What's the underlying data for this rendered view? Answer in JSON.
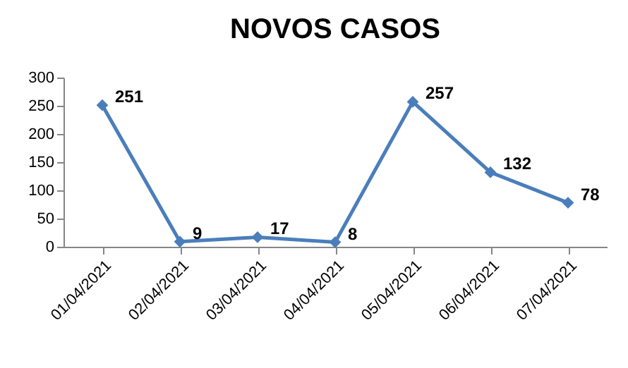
{
  "chart_data": {
    "type": "line",
    "title": "NOVOS CASOS",
    "categories": [
      "01/04/2021",
      "02/04/2021",
      "03/04/2021",
      "04/04/2021",
      "05/04/2021",
      "06/04/2021",
      "07/04/2021"
    ],
    "values": [
      251,
      9,
      17,
      8,
      257,
      132,
      78
    ],
    "color": "#4a7ebb",
    "marker": "diamond",
    "line_style": "solid",
    "data_labels": true,
    "ylim": [
      0,
      300
    ],
    "yticks": [
      0,
      50,
      100,
      150,
      200,
      250,
      300
    ]
  }
}
